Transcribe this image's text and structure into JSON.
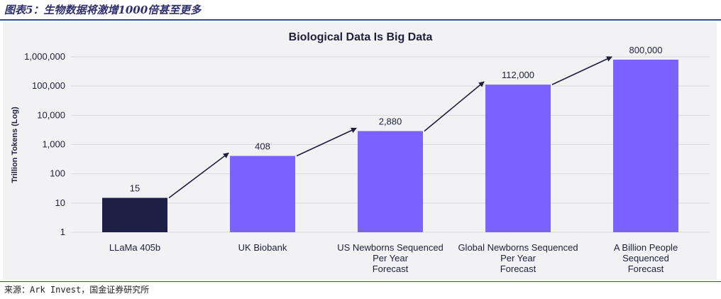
{
  "figure_caption": "图表5：生物数据将激增1000倍甚至更多",
  "source_note": "来源：Ark Invest，国金证券研究所",
  "colors": {
    "first_bar": "#1e1f45",
    "other_bars": "#7b61ff",
    "arrow": "#1f1f3a",
    "grid": "#d9d9de",
    "panel": "#f2f2f5"
  },
  "chart_data": {
    "type": "bar",
    "title": "Biological Data Is Big Data",
    "ylabel": "Trillion Tokens (Log)",
    "xlabel": "",
    "scale": "log",
    "ylim": [
      1,
      1000000
    ],
    "yticks": [
      1,
      10,
      100,
      1000,
      10000,
      100000,
      1000000
    ],
    "ytick_labels": [
      "1",
      "10",
      "100",
      "1,000",
      "10,000",
      "100,000",
      "1,000,000"
    ],
    "grid": true,
    "categories": [
      [
        "LLaMa 405b"
      ],
      [
        "UK Biobank"
      ],
      [
        "US Newborns Sequenced",
        "Per Year",
        "Forecast"
      ],
      [
        "Global Newborns Sequenced",
        "Per Year",
        "Forecast"
      ],
      [
        "A Billion People",
        "Sequenced",
        "Forecast"
      ]
    ],
    "values": [
      15,
      408,
      2880,
      112000,
      800000
    ],
    "value_labels": [
      "15",
      "408",
      "2,880",
      "112,000",
      "800,000"
    ]
  }
}
